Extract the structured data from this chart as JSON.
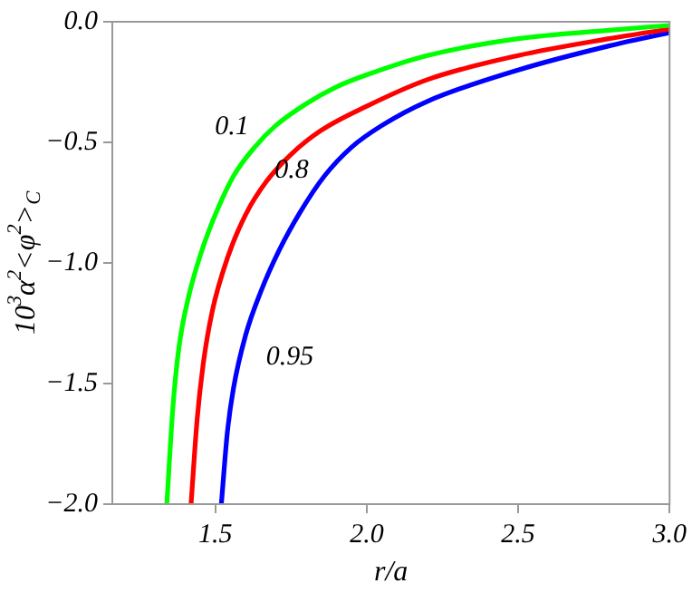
{
  "chart_data": {
    "type": "line",
    "xlabel": "r/a",
    "ylabel": "10$^{3}$α$^{2}$<φ$^{2}$>$_{C}$",
    "xlim": [
      1.16,
      3.0
    ],
    "ylim": [
      -2.0,
      0.0
    ],
    "xticks": [
      1.5,
      {
        "value": 2.0,
        "label": "2.0"
      },
      2.5,
      {
        "value": 3.0,
        "label": "3.0"
      }
    ],
    "yticks": [
      {
        "value": -2.0,
        "label": "−2.0"
      },
      {
        "value": -1.5,
        "label": "−1.5"
      },
      {
        "value": -1.0,
        "label": "−1.0"
      },
      {
        "value": -0.5,
        "label": "−0.5"
      },
      {
        "value": 0.0,
        "label": "0.0"
      }
    ],
    "grid": false,
    "legend": false,
    "marker": "none",
    "line_style": "solid",
    "series": [
      {
        "name": "0.1",
        "color": "#00ff00",
        "x": [
          1.34,
          1.36,
          1.38,
          1.41,
          1.45,
          1.5,
          1.56,
          1.63,
          1.7,
          1.8,
          1.9,
          2.0,
          2.2,
          2.5,
          2.8,
          3.0
        ],
        "values": [
          -2.0,
          -1.6,
          -1.35,
          -1.15,
          -0.97,
          -0.8,
          -0.64,
          -0.52,
          -0.43,
          -0.34,
          -0.27,
          -0.22,
          -0.14,
          -0.07,
          -0.035,
          -0.015
        ]
      },
      {
        "name": "0.8",
        "color": "#ff0000",
        "x": [
          1.42,
          1.44,
          1.46,
          1.49,
          1.54,
          1.6,
          1.67,
          1.75,
          1.85,
          2.0,
          2.2,
          2.5,
          2.8,
          3.0
        ],
        "values": [
          -2.0,
          -1.65,
          -1.42,
          -1.2,
          -0.98,
          -0.8,
          -0.66,
          -0.55,
          -0.45,
          -0.35,
          -0.24,
          -0.14,
          -0.07,
          -0.03
        ]
      },
      {
        "name": "0.95",
        "color": "#0000ff",
        "x": [
          1.52,
          1.54,
          1.56,
          1.6,
          1.65,
          1.71,
          1.78,
          1.86,
          1.95,
          2.05,
          2.2,
          2.5,
          2.8,
          3.0
        ],
        "values": [
          -2.0,
          -1.7,
          -1.52,
          -1.3,
          -1.12,
          -0.95,
          -0.79,
          -0.64,
          -0.52,
          -0.43,
          -0.33,
          -0.2,
          -0.1,
          -0.045
        ]
      }
    ]
  }
}
